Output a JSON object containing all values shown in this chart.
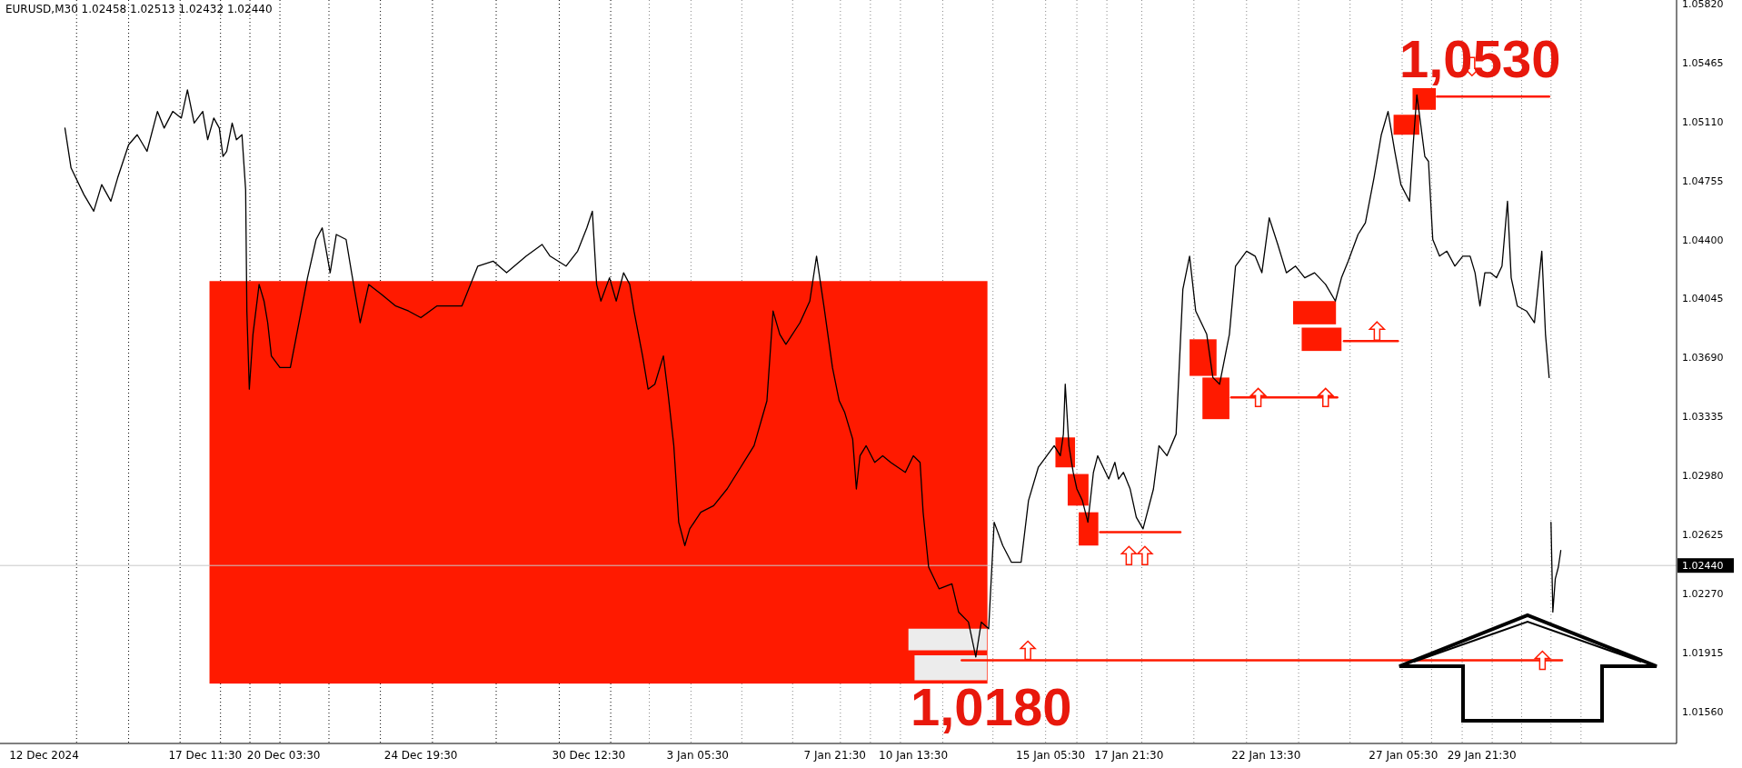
{
  "chart_data": {
    "type": "line",
    "title": "EURUSD,M30  1.02458 1.02513 1.02432 1.02440",
    "xlim": [
      "2024-12-10T12:00",
      "2025-02-05T12:30"
    ],
    "ylim": [
      1.0137,
      1.0584
    ],
    "xticks": [
      {
        "value": "2024-12-12",
        "label": "12 Dec 2024"
      },
      {
        "value": "2024-12-17T11:30",
        "label": "17 Dec 11:30"
      },
      {
        "value": "2024-12-20T03:30",
        "label": "20 Dec 03:30"
      },
      {
        "value": "2024-12-24T19:30",
        "label": "24 Dec 19:30"
      },
      {
        "value": "2024-12-30T12:30",
        "label": "30 Dec 12:30"
      },
      {
        "value": "2025-01-03T05:30",
        "label": "3 Jan 05:30"
      },
      {
        "value": "2025-01-07T21:30",
        "label": "7 Jan 21:30"
      },
      {
        "value": "2025-01-10T13:30",
        "label": "10 Jan 13:30"
      },
      {
        "value": "2025-01-15T05:30",
        "label": "15 Jan 05:30"
      },
      {
        "value": "2025-01-17T21:30",
        "label": "17 Jan 21:30"
      },
      {
        "value": "2025-01-22T13:30",
        "label": "22 Jan 13:30"
      },
      {
        "value": "2025-01-27T05:30",
        "label": "27 Jan 05:30"
      },
      {
        "value": "2025-01-29T21:30",
        "label": "29 Jan 21:30"
      }
    ],
    "yticks": [
      {
        "value": 1.0156,
        "label": "1.01560"
      },
      {
        "value": 1.01915,
        "label": "1.01915"
      },
      {
        "value": 1.0227,
        "label": "1.02270"
      },
      {
        "value": 1.02625,
        "label": "1.02625"
      },
      {
        "value": 1.0298,
        "label": "1.02980"
      },
      {
        "value": 1.03335,
        "label": "1.03335"
      },
      {
        "value": 1.0369,
        "label": "1.03690"
      },
      {
        "value": 1.04045,
        "label": "1.04045"
      },
      {
        "value": 1.044,
        "label": "1.04400"
      },
      {
        "value": 1.04755,
        "label": "1.04755"
      },
      {
        "value": 1.0511,
        "label": "1.05110"
      },
      {
        "value": 1.05465,
        "label": "1.05465"
      },
      {
        "value": 1.0582,
        "label": "1.05820"
      }
    ],
    "series": [
      {
        "color": "#000000",
        "x": [
          "2024-12-12T17:00",
          "2024-12-12T22:00",
          "2024-12-13T08:30",
          "2024-12-13T16:30",
          "2024-12-13T23:00",
          "2024-12-14T06:30",
          "2024-12-14T12:00",
          "2024-12-14T21:00",
          "2024-12-15T04:00",
          "2024-12-15T12:00",
          "2024-12-15T20:30",
          "2024-12-16T02:00",
          "2024-12-16T09:00",
          "2024-12-16T16:00",
          "2024-12-16T21:00",
          "2024-12-17T02:30",
          "2024-12-17T09:30",
          "2024-12-17T13:30",
          "2024-12-17T18:30",
          "2024-12-17T23:00",
          "2024-12-18T02:00",
          "2024-12-18T05:00",
          "2024-12-18T09:30",
          "2024-12-18T13:00",
          "2024-12-18T17:30",
          "2024-12-18T20:30",
          "2024-12-18T21:30",
          "2024-12-18T23:30",
          "2024-12-19T02:30",
          "2024-12-19T07:30",
          "2024-12-19T11:30",
          "2024-12-19T14:30",
          "2024-12-19T17:30",
          "2024-12-20T00:30",
          "2024-12-20T09:00",
          "2024-12-20T16:00",
          "2024-12-20T23:00",
          "2024-12-21T06:00",
          "2024-12-21T11:00",
          "2024-12-21T17:30",
          "2024-12-21T22:30",
          "2024-12-22T06:30",
          "2024-12-22T11:00",
          "2024-12-22T18:00",
          "2024-12-23T01:00",
          "2024-12-23T11:30",
          "2024-12-23T23:00",
          "2024-12-24T09:30",
          "2024-12-24T19:30",
          "2024-12-25T08:30",
          "2024-12-26T05:00",
          "2024-12-26T18:00",
          "2024-12-27T06:30",
          "2024-12-27T17:30",
          "2024-12-28T09:30",
          "2024-12-28T22:30",
          "2024-12-29T05:00",
          "2024-12-29T18:00",
          "2024-12-30T03:30",
          "2024-12-30T11:00",
          "2024-12-30T15:30",
          "2024-12-30T19:00",
          "2024-12-30T22:30",
          "2024-12-31T05:30",
          "2024-12-31T11:00",
          "2024-12-31T17:00",
          "2024-12-31T22:00",
          "2025-01-01T01:30",
          "2025-01-01T08:30",
          "2025-01-01T13:00",
          "2025-01-01T18:30",
          "2025-01-02T01:30",
          "2025-01-02T05:30",
          "2025-01-02T10:00",
          "2025-01-02T14:00",
          "2025-01-02T19:00",
          "2025-01-02T23:00",
          "2025-01-03T08:00",
          "2025-01-03T18:30",
          "2025-01-04T05:30",
          "2025-01-04T16:30",
          "2025-01-05T03:30",
          "2025-01-05T14:00",
          "2025-01-05T19:00",
          "2025-01-06T00:30",
          "2025-01-06T05:30",
          "2025-01-06T17:00",
          "2025-01-07T01:00",
          "2025-01-07T06:30",
          "2025-01-07T12:30",
          "2025-01-07T19:30",
          "2025-01-08T01:00",
          "2025-01-08T05:30",
          "2025-01-08T12:00",
          "2025-01-08T15:00",
          "2025-01-08T18:00",
          "2025-01-08T23:00",
          "2025-01-09T06:00",
          "2025-01-09T12:30",
          "2025-01-09T19:00",
          "2025-01-10T01:00",
          "2025-01-10T07:00",
          "2025-01-10T13:30",
          "2025-01-10T19:00",
          "2025-01-10T21:30",
          "2025-01-11T02:00",
          "2025-01-11T10:30",
          "2025-01-11T21:00",
          "2025-01-12T02:30",
          "2025-01-12T10:30",
          "2025-01-12T16:30",
          "2025-01-12T21:00",
          "2025-01-13T03:00",
          "2025-01-13T07:30",
          "2025-01-13T14:30",
          "2025-01-13T21:30",
          "2025-01-14T05:30",
          "2025-01-14T11:30",
          "2025-01-14T19:30",
          "2025-01-15T02:30",
          "2025-01-15T08:30",
          "2025-01-15T13:30",
          "2025-01-15T16:00",
          "2025-01-15T17:30",
          "2025-01-15T20:30",
          "2025-01-16T00:00",
          "2025-01-16T03:00",
          "2025-01-16T07:30",
          "2025-01-16T12:00",
          "2025-01-16T16:30",
          "2025-01-16T20:00",
          "2025-01-17T00:30",
          "2025-01-17T05:00",
          "2025-01-17T10:00",
          "2025-01-17T13:00",
          "2025-01-17T17:00",
          "2025-01-17T22:30",
          "2025-01-18T03:30",
          "2025-01-18T09:00",
          "2025-01-18T17:30",
          "2025-01-18T22:00",
          "2025-01-19T04:30",
          "2025-01-19T12:00",
          "2025-01-19T17:30",
          "2025-01-19T23:00",
          "2025-01-20T04:00",
          "2025-01-20T13:00",
          "2025-01-20T18:00",
          "2025-01-20T23:30",
          "2025-01-21T07:30",
          "2025-01-21T12:30",
          "2025-01-21T21:30",
          "2025-01-22T04:30",
          "2025-01-22T10:00",
          "2025-01-22T16:00",
          "2025-01-22T23:00",
          "2025-01-23T06:00",
          "2025-01-23T13:30",
          "2025-01-23T21:00",
          "2025-01-24T05:00",
          "2025-01-24T14:00",
          "2025-01-24T22:00",
          "2025-01-25T03:00",
          "2025-01-25T08:30",
          "2025-01-25T16:30",
          "2025-01-25T22:30",
          "2025-01-26T05:30",
          "2025-01-26T11:30",
          "2025-01-26T17:00",
          "2025-01-26T22:30",
          "2025-01-27T03:30",
          "2025-01-27T10:30",
          "2025-01-27T13:30",
          "2025-01-27T16:30",
          "2025-01-27T19:30",
          "2025-01-27T23:00",
          "2025-01-28T02:00",
          "2025-01-28T05:30",
          "2025-01-28T11:00",
          "2025-01-28T17:00",
          "2025-01-28T23:30",
          "2025-01-29T06:00",
          "2025-01-29T12:00",
          "2025-01-29T16:00",
          "2025-01-29T20:00",
          "2025-01-30T00:00",
          "2025-01-30T04:30",
          "2025-01-30T09:30",
          "2025-01-30T14:00",
          "2025-01-30T18:30",
          "2025-01-30T21:30",
          "2025-01-31T02:30",
          "2025-01-31T10:00",
          "2025-01-31T16:30",
          "2025-01-31T22:30",
          "2025-02-01T01:30",
          "2025-02-01T04:30",
          "2025-02-01T05:00",
          "2025-02-01T06:00",
          "2025-02-01T07:30",
          "2025-02-01T09:30",
          "2025-02-01T12:00",
          "2025-02-01T14:00"
        ],
        "values": [
          1.0507,
          1.0483,
          1.0467,
          1.0457,
          1.0473,
          1.0463,
          1.0477,
          1.0497,
          1.0503,
          1.0493,
          1.0517,
          1.0507,
          1.0517,
          1.0513,
          1.053,
          1.051,
          1.0517,
          1.05,
          1.0513,
          1.0507,
          1.049,
          1.0493,
          1.051,
          1.05,
          1.0503,
          1.047,
          1.0397,
          1.035,
          1.0383,
          1.0413,
          1.0403,
          1.039,
          1.037,
          1.0363,
          1.0363,
          1.039,
          1.0417,
          1.044,
          1.0447,
          1.042,
          1.0443,
          1.044,
          1.042,
          1.039,
          1.0413,
          1.0407,
          1.04,
          1.0397,
          1.0393,
          1.04,
          1.04,
          1.0424,
          1.0427,
          1.042,
          1.043,
          1.0437,
          1.043,
          1.0424,
          1.0433,
          1.0447,
          1.0457,
          1.0413,
          1.0403,
          1.0417,
          1.0403,
          1.042,
          1.0413,
          1.0397,
          1.037,
          1.035,
          1.0353,
          1.037,
          1.0346,
          1.0316,
          1.027,
          1.0256,
          1.0266,
          1.0276,
          1.028,
          1.029,
          1.0303,
          1.0316,
          1.0343,
          1.0397,
          1.0383,
          1.0377,
          1.039,
          1.0403,
          1.043,
          1.04,
          1.0363,
          1.0343,
          1.0336,
          1.032,
          1.029,
          1.031,
          1.0316,
          1.0306,
          1.031,
          1.0306,
          1.0303,
          1.03,
          1.031,
          1.0306,
          1.0276,
          1.0243,
          1.023,
          1.0233,
          1.0216,
          1.021,
          1.0189,
          1.021,
          1.0206,
          1.027,
          1.0256,
          1.0246,
          1.0246,
          1.0283,
          1.0303,
          1.031,
          1.0316,
          1.031,
          1.0323,
          1.0353,
          1.0316,
          1.03,
          1.029,
          1.0283,
          1.027,
          1.03,
          1.031,
          1.0303,
          1.0296,
          1.0306,
          1.0296,
          1.03,
          1.029,
          1.0273,
          1.0266,
          1.029,
          1.0316,
          1.031,
          1.0323,
          1.041,
          1.043,
          1.0397,
          1.0383,
          1.0357,
          1.0353,
          1.0383,
          1.0424,
          1.0433,
          1.043,
          1.042,
          1.0453,
          1.0437,
          1.042,
          1.0424,
          1.0417,
          1.042,
          1.0413,
          1.0403,
          1.0417,
          1.0427,
          1.0443,
          1.045,
          1.0477,
          1.0503,
          1.0517,
          1.0493,
          1.0473,
          1.0463,
          1.0497,
          1.0527,
          1.051,
          1.049,
          1.0487,
          1.044,
          1.043,
          1.0433,
          1.0424,
          1.043,
          1.043,
          1.042,
          1.04,
          1.042,
          1.042,
          1.0417,
          1.0424,
          1.0463,
          1.0417,
          1.04,
          1.0397,
          1.039,
          1.0433,
          1.0383,
          1.0357,
          null,
          1.027,
          1.0216,
          1.0236,
          1.0243,
          1.0253
        ]
      },
      {
        "type": "line",
        "color": "#ff1a00",
        "x": [
          "2025-01-28T09:00",
          "2025-02-01T04:30"
        ],
        "values": [
          1.0526,
          1.0526
        ]
      },
      {
        "type": "line",
        "color": "#ff1a00",
        "x": [
          "2025-01-25T05:00",
          "2025-01-27T01:00"
        ],
        "values": [
          1.0379,
          1.0379
        ]
      },
      {
        "type": "line",
        "color": "#ff1a00",
        "x": [
          "2025-01-21T09:00",
          "2025-01-24T23:30"
        ],
        "values": [
          1.0345,
          1.0345
        ]
      },
      {
        "type": "line",
        "color": "#ff1a00",
        "x": [
          "2025-01-16T22:00",
          "2025-01-19T15:30"
        ],
        "values": [
          1.0264,
          1.0264
        ]
      },
      {
        "type": "line",
        "color": "#ff1a00",
        "x": [
          "2025-01-12T05:00",
          "2025-02-01T15:00"
        ],
        "values": [
          1.0187,
          1.0187
        ]
      }
    ],
    "ref_lines": [
      {
        "axis": "y",
        "value": 1.0244,
        "label": "1.02440",
        "color": "#c8c8c8"
      },
      {
        "axis": "x",
        "value": "2024-12-13T02:30",
        "line_style": "dotted",
        "color": "#000000"
      },
      {
        "axis": "x",
        "value": "2024-12-14T21:00",
        "line_style": "dotted",
        "color": "#000000"
      },
      {
        "axis": "x",
        "value": "2024-12-16T15:00",
        "line_style": "dotted",
        "color": "#000000"
      },
      {
        "axis": "x",
        "value": "2024-12-18T00:00",
        "line_style": "dotted",
        "color": "#000000"
      },
      {
        "axis": "x",
        "value": "2024-12-19T00:00",
        "line_style": "dotted",
        "color": "#000000"
      },
      {
        "axis": "x",
        "value": "2024-12-20T00:30",
        "line_style": "dotted",
        "color": "#000000"
      },
      {
        "axis": "x",
        "value": "2024-12-21T16:30",
        "line_style": "dotted",
        "color": "#000000"
      },
      {
        "axis": "x",
        "value": "2024-12-23T10:30",
        "line_style": "dotted",
        "color": "#000000"
      },
      {
        "axis": "x",
        "value": "2024-12-25T05:00",
        "line_style": "dotted",
        "color": "#000000"
      },
      {
        "axis": "x",
        "value": "2024-12-27T09:00",
        "line_style": "dotted",
        "color": "#000000"
      },
      {
        "axis": "x",
        "value": "2024-12-29T12:30",
        "line_style": "dotted",
        "color": "#000000"
      },
      {
        "axis": "x",
        "value": "2024-12-31T06:30",
        "line_style": "dotted",
        "color": "#000000"
      },
      {
        "axis": "x",
        "value": "2025-01-01T14:00",
        "line_style": "dotted",
        "color": "#888888"
      },
      {
        "axis": "x",
        "value": "2025-01-03T00:00",
        "line_style": "dotted",
        "color": "#888888"
      },
      {
        "axis": "x",
        "value": "2025-01-04T17:30",
        "line_style": "dotted",
        "color": "#888888"
      },
      {
        "axis": "x",
        "value": "2025-01-06T11:00",
        "line_style": "dotted",
        "color": "#888888"
      },
      {
        "axis": "x",
        "value": "2025-01-08T02:00",
        "line_style": "dotted",
        "color": "#888888"
      },
      {
        "axis": "x",
        "value": "2025-01-09T02:30",
        "line_style": "dotted",
        "color": "#888888"
      },
      {
        "axis": "x",
        "value": "2025-01-10T03:00",
        "line_style": "dotted",
        "color": "#888888"
      },
      {
        "axis": "x",
        "value": "2025-01-11T13:30",
        "line_style": "dotted",
        "color": "#888888"
      },
      {
        "axis": "x",
        "value": "2025-01-13T06:30",
        "line_style": "dotted",
        "color": "#888888"
      },
      {
        "axis": "x",
        "value": "2025-01-15T01:30",
        "line_style": "dotted",
        "color": "#888888"
      },
      {
        "axis": "x",
        "value": "2025-01-16T03:00",
        "line_style": "dotted",
        "color": "#888888"
      },
      {
        "axis": "x",
        "value": "2025-01-17T03:30",
        "line_style": "dotted",
        "color": "#888888"
      },
      {
        "axis": "x",
        "value": "2025-01-18T08:00",
        "line_style": "dotted",
        "color": "#888888"
      },
      {
        "axis": "x",
        "value": "2025-01-20T02:30",
        "line_style": "dotted",
        "color": "#888888"
      },
      {
        "axis": "x",
        "value": "2025-01-21T21:30",
        "line_style": "dotted",
        "color": "#888888"
      },
      {
        "axis": "x",
        "value": "2025-01-23T16:00",
        "line_style": "dotted",
        "color": "#888888"
      },
      {
        "axis": "x",
        "value": "2025-01-25T10:00",
        "line_style": "dotted",
        "color": "#888888"
      },
      {
        "axis": "x",
        "value": "2025-01-27T04:30",
        "line_style": "dotted",
        "color": "#888888"
      },
      {
        "axis": "x",
        "value": "2025-01-28T04:30",
        "line_style": "dotted",
        "color": "#888888"
      },
      {
        "axis": "x",
        "value": "2025-01-29T05:30",
        "line_style": "dotted",
        "color": "#888888"
      },
      {
        "axis": "x",
        "value": "2025-01-30T06:00",
        "line_style": "dotted",
        "color": "#888888"
      },
      {
        "axis": "x",
        "value": "2025-01-31T06:00",
        "line_style": "dotted",
        "color": "#888888"
      },
      {
        "axis": "x",
        "value": "2025-02-01T06:00",
        "line_style": "dotted",
        "color": "#888888"
      },
      {
        "axis": "x",
        "value": "2025-02-02T06:30",
        "line_style": "dotted",
        "color": "#888888"
      }
    ],
    "annotations": [
      "1,0530",
      "1,0180"
    ]
  }
}
